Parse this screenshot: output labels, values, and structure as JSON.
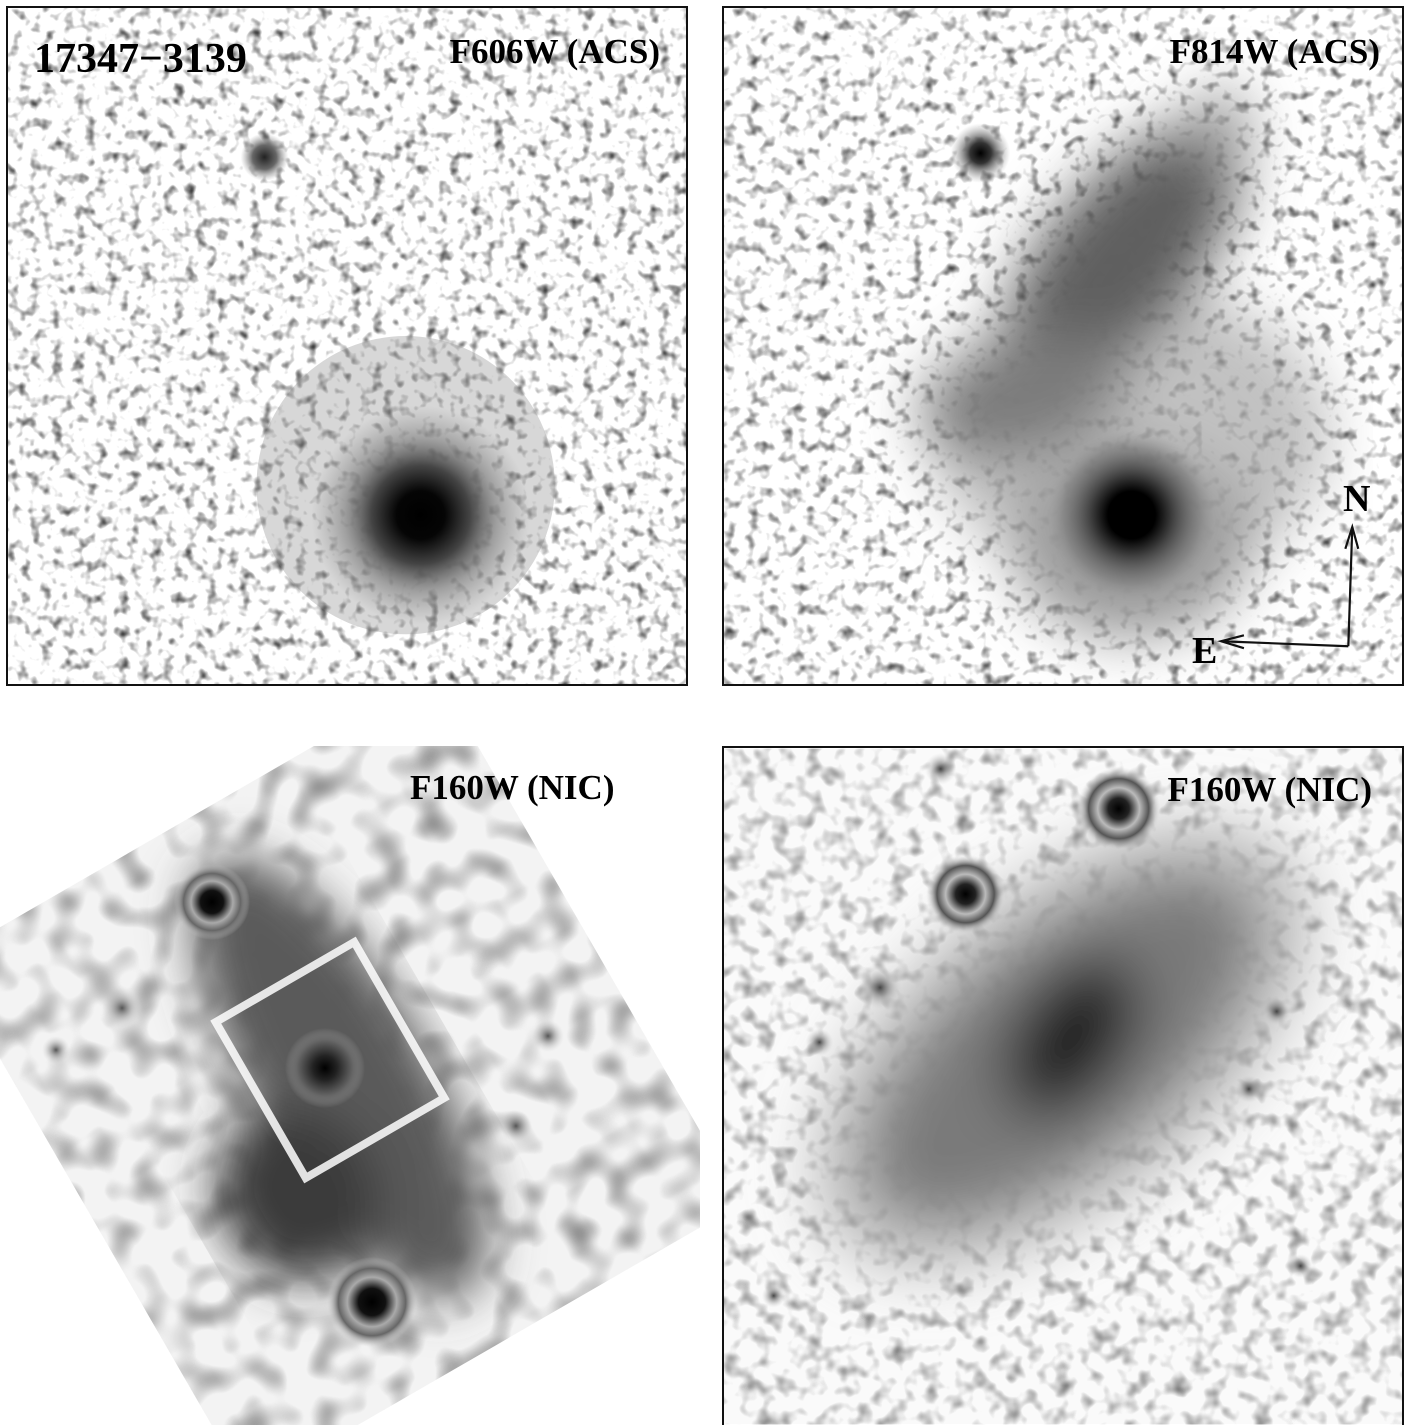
{
  "figure": {
    "object_id": "17347−3139",
    "panels": [
      {
        "id": "p1",
        "filter": "F606W (ACS)"
      },
      {
        "id": "p2",
        "filter": "F814W (ACS)"
      },
      {
        "id": "p3",
        "filter": "F160W (NIC)"
      },
      {
        "id": "p4",
        "filter": "F160W (NIC)"
      }
    ],
    "compass": {
      "north": "N",
      "east": "E"
    }
  }
}
